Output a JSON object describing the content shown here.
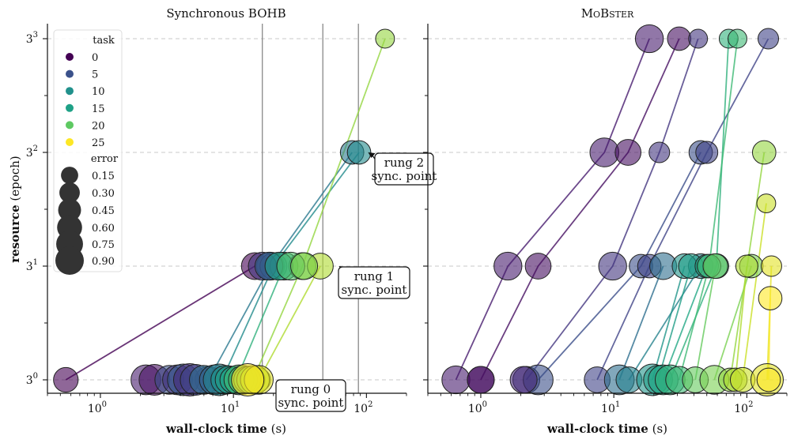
{
  "chart_data": [
    {
      "type": "scatter",
      "title": "Synchronous BOHB",
      "title_main": "Synchronous ",
      "title_sc": "BOHB",
      "xlabel": "wall-clock time",
      "xlabel_unit": "(s)",
      "ylabel": "resource",
      "ylabel_unit": "(epoch)",
      "x_scale": "log",
      "xlim": [
        0.4,
        200
      ],
      "y_scale": "log base 3",
      "ylim": [
        0.87,
        27.5
      ],
      "x_ticks": [
        1,
        10,
        100
      ],
      "x_tick_labels": [
        "10",
        "10",
        "10"
      ],
      "x_tick_exponents": [
        "0",
        "1",
        "2"
      ],
      "y_ticks": [
        1,
        3,
        9,
        27
      ],
      "y_tick_labels": [
        "3",
        "3",
        "3",
        "3"
      ],
      "y_tick_exponents": [
        "0",
        "1",
        "2",
        "3"
      ],
      "grid": "horizontal dashed",
      "vertical_lines": [
        16.5,
        47,
        87
      ],
      "legend_position": "top-left",
      "annotations": [
        {
          "line1": "rung 0",
          "line2": "sync. point",
          "arrow_to": [
            22,
            1
          ]
        },
        {
          "line1": "rung 1",
          "line2": "sync. point",
          "arrow_to": [
            62,
            3
          ]
        },
        {
          "line1": "rung 2",
          "line2": "sync. point",
          "arrow_to": [
            103,
            9
          ]
        }
      ],
      "traces": [
        {
          "task": 0,
          "x": [
            0.55,
            14.5
          ],
          "y": [
            1,
            3
          ],
          "errors": [
            0.35,
            0.45
          ]
        },
        {
          "task": 10,
          "x": [
            6.5,
            19,
            78
          ],
          "y": [
            1,
            3,
            9
          ],
          "errors": [
            0.45,
            0.5,
            0.3
          ]
        },
        {
          "task": 12,
          "x": [
            8.2,
            20,
            88
          ],
          "y": [
            1,
            3,
            9
          ],
          "errors": [
            0.4,
            0.45,
            0.3
          ]
        },
        {
          "task": 16,
          "x": [
            10.5,
            24
          ],
          "y": [
            1,
            3
          ],
          "errors": [
            0.35,
            0.5
          ]
        },
        {
          "task": 21,
          "x": [
            14,
            33,
            138
          ],
          "y": [
            1,
            3,
            27
          ],
          "errors": [
            0.35,
            0.45,
            0.15
          ]
        },
        {
          "task": 22,
          "x": [
            15.5,
            45
          ],
          "y": [
            1,
            3
          ],
          "errors": [
            0.3,
            0.4
          ]
        }
      ],
      "points_rung0": [
        {
          "task": 2,
          "x": 2.2,
          "error": 0.6
        },
        {
          "task": 1,
          "x": 2.55,
          "error": 0.65
        },
        {
          "task": 6,
          "x": 3.3,
          "error": 0.55
        },
        {
          "task": 4,
          "x": 3.8,
          "error": 0.6
        },
        {
          "task": 7,
          "x": 4.2,
          "error": 0.7
        },
        {
          "task": 3,
          "x": 4.7,
          "error": 0.75
        },
        {
          "task": 5,
          "x": 5.2,
          "error": 0.65
        },
        {
          "task": 9,
          "x": 6.0,
          "error": 0.55
        },
        {
          "task": 8,
          "x": 7.2,
          "error": 0.6
        },
        {
          "task": 11,
          "x": 7.8,
          "error": 0.7
        },
        {
          "task": 13,
          "x": 8.7,
          "error": 0.55
        },
        {
          "task": 14,
          "x": 9.3,
          "error": 0.5
        },
        {
          "task": 15,
          "x": 10.0,
          "error": 0.45
        },
        {
          "task": 17,
          "x": 11.0,
          "error": 0.6
        },
        {
          "task": 18,
          "x": 11.8,
          "error": 0.55
        },
        {
          "task": 19,
          "x": 12.7,
          "error": 0.45
        },
        {
          "task": 20,
          "x": 13.5,
          "error": 0.5
        },
        {
          "task": 23,
          "x": 14.5,
          "error": 0.55
        },
        {
          "task": 24,
          "x": 15.5,
          "error": 0.55
        },
        {
          "task": 25,
          "x": 12.8,
          "error": 0.75
        }
      ],
      "points_rung1": [
        {
          "task": 4,
          "x": 16.5,
          "error": 0.5
        },
        {
          "task": 8,
          "x": 18.5,
          "error": 0.5
        },
        {
          "task": 14,
          "x": 22,
          "error": 0.5
        },
        {
          "task": 18,
          "x": 27,
          "error": 0.5
        },
        {
          "task": 20,
          "x": 34,
          "error": 0.45
        }
      ]
    },
    {
      "type": "scatter",
      "title": "MoBster",
      "title_main": "",
      "title_sc": "MoBster",
      "xlabel": "wall-clock time",
      "xlabel_unit": "(s)",
      "x_scale": "log",
      "xlim": [
        0.4,
        200
      ],
      "y_scale": "log base 3",
      "ylim": [
        0.87,
        27.5
      ],
      "x_ticks": [
        1,
        10,
        100
      ],
      "x_tick_labels": [
        "10",
        "10",
        "10"
      ],
      "x_tick_exponents": [
        "0",
        "1",
        "2"
      ],
      "grid": "horizontal dashed",
      "traces": [
        {
          "task": 2,
          "x": [
            0.65,
            1.6,
            8.5,
            18.5
          ],
          "y": [
            1,
            3,
            9,
            27
          ],
          "errors": [
            0.5,
            0.5,
            0.55,
            0.5
          ]
        },
        {
          "task": 1,
          "x": [
            1.0,
            2.7,
            12.8,
            31
          ],
          "y": [
            1,
            3,
            9,
            27
          ],
          "errors": [
            0.45,
            0.4,
            0.4,
            0.3
          ]
        },
        {
          "task": 4,
          "x": [
            2.2,
            9.8,
            22,
            43
          ],
          "y": [
            1,
            3,
            9,
            27
          ],
          "errors": [
            0.45,
            0.5,
            0.2,
            0.15
          ]
        },
        {
          "task": 6,
          "x": [
            2.7,
            16,
            45
          ],
          "y": [
            1,
            3,
            9
          ],
          "errors": [
            0.6,
            0.3,
            0.3
          ]
        },
        {
          "task": 5,
          "x": [
            7.5,
            18.5,
            50,
            145
          ],
          "y": [
            1,
            3,
            9,
            27
          ],
          "errors": [
            0.4,
            0.3,
            0.25,
            0.2
          ]
        },
        {
          "task": 9,
          "x": [
            11,
            23.5
          ],
          "y": [
            1,
            3
          ],
          "errors": [
            0.6,
            0.45
          ]
        },
        {
          "task": 11,
          "x": [
            13,
            45
          ],
          "y": [
            1,
            3
          ],
          "errors": [
            0.4,
            0.35
          ]
        },
        {
          "task": 13,
          "x": [
            19.5,
            34
          ],
          "y": [
            1,
            3
          ],
          "errors": [
            0.7,
            0.35
          ]
        },
        {
          "task": 14,
          "x": [
            21.5,
            38
          ],
          "y": [
            1,
            3
          ],
          "errors": [
            0.55,
            0.35
          ]
        },
        {
          "task": 15,
          "x": [
            23.5,
            50
          ],
          "y": [
            1,
            3
          ],
          "errors": [
            0.6,
            0.3
          ]
        },
        {
          "task": 16,
          "x": [
            26.5,
            59,
            73
          ],
          "y": [
            1,
            3,
            27
          ],
          "errors": [
            0.6,
            0.35,
            0.15
          ]
        },
        {
          "task": 17,
          "x": [
            31,
            52,
            85
          ],
          "y": [
            1,
            3,
            27
          ],
          "errors": [
            0.45,
            0.3,
            0.15
          ]
        },
        {
          "task": 19,
          "x": [
            41,
            58
          ],
          "y": [
            1,
            3
          ],
          "errors": [
            0.4,
            0.35
          ]
        },
        {
          "task": 20,
          "x": [
            57,
            108
          ],
          "y": [
            1,
            3
          ],
          "errors": [
            0.55,
            0.3
          ]
        },
        {
          "task": 21,
          "x": [
            75,
            135
          ],
          "y": [
            1,
            9
          ],
          "errors": [
            0.3,
            0.3
          ]
        },
        {
          "task": 22,
          "x": [
            82,
            100
          ],
          "y": [
            1,
            3
          ],
          "errors": [
            0.3,
            0.25
          ]
        },
        {
          "task": 23,
          "x": [
            93,
            140
          ],
          "y": [
            1,
            5.5
          ],
          "errors": [
            0.35,
            0.15
          ]
        },
        {
          "task": 24,
          "x": [
            142,
            153
          ],
          "y": [
            1,
            3
          ],
          "errors": [
            0.75,
            0.2
          ]
        },
        {
          "task": 25,
          "x": [
            146,
            150
          ],
          "y": [
            1,
            2.2
          ],
          "errors": [
            0.3,
            0.3
          ]
        }
      ],
      "points": [
        {
          "task": 1,
          "x": 1.0,
          "y": 1,
          "error": 0.45
        },
        {
          "task": 3,
          "x": 2.1,
          "y": 1,
          "error": 0.45
        }
      ]
    }
  ],
  "legend": {
    "task_title": "task",
    "tasks": [
      {
        "label": "0",
        "color": "#440154"
      },
      {
        "label": "5",
        "color": "#3b528b"
      },
      {
        "label": "10",
        "color": "#21918c"
      },
      {
        "label": "15",
        "color": "#1fa187"
      },
      {
        "label": "20",
        "color": "#5ec962"
      },
      {
        "label": "25",
        "color": "#fde725"
      }
    ],
    "error_title": "error",
    "errors": [
      {
        "label": "0.15",
        "value": 0.15
      },
      {
        "label": "0.30",
        "value": 0.3
      },
      {
        "label": "0.45",
        "value": 0.45
      },
      {
        "label": "0.60",
        "value": 0.6
      },
      {
        "label": "0.75",
        "value": 0.75
      },
      {
        "label": "0.90",
        "value": 0.9
      }
    ]
  },
  "colors": {
    "grid": "#c8c8c8",
    "sync_line": "#7f7f7f",
    "marker_edge": "#222222",
    "size_legend_marker": "#333333"
  }
}
